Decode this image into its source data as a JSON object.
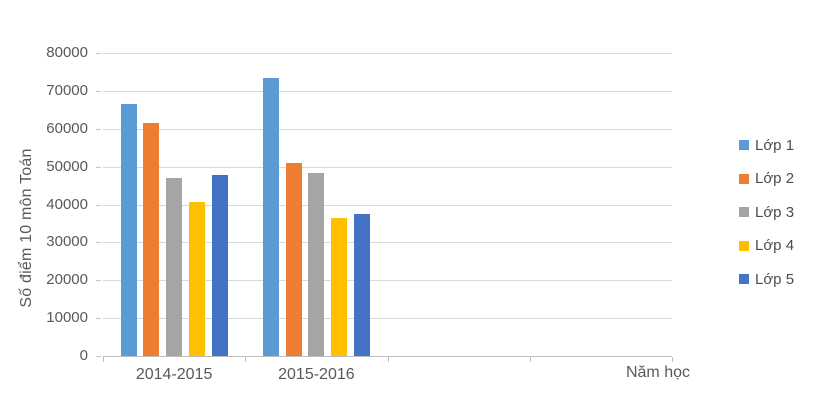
{
  "chart_data": {
    "type": "bar",
    "categories": [
      "2014-2015",
      "2015-2016"
    ],
    "series": [
      {
        "name": "Lớp 1",
        "color": "#5B9BD5",
        "values": [
          66500,
          73300
        ]
      },
      {
        "name": "Lớp 2",
        "color": "#ED7D31",
        "values": [
          61400,
          51000
        ]
      },
      {
        "name": "Lớp 3",
        "color": "#A5A5A5",
        "values": [
          47000,
          48300
        ]
      },
      {
        "name": "Lớp 4",
        "color": "#FFC000",
        "values": [
          40600,
          36500
        ]
      },
      {
        "name": "Lớp 5",
        "color": "#4472C4",
        "values": [
          47700,
          37500
        ]
      }
    ],
    "xlabel": "Năm học",
    "ylabel": "Số điểm 10 môn Toán",
    "ylim": [
      0,
      80000
    ],
    "y_ticks": [
      0,
      10000,
      20000,
      30000,
      40000,
      50000,
      60000,
      70000,
      80000
    ],
    "x_slot_count": 4,
    "grid": true,
    "legend_position": "right"
  }
}
